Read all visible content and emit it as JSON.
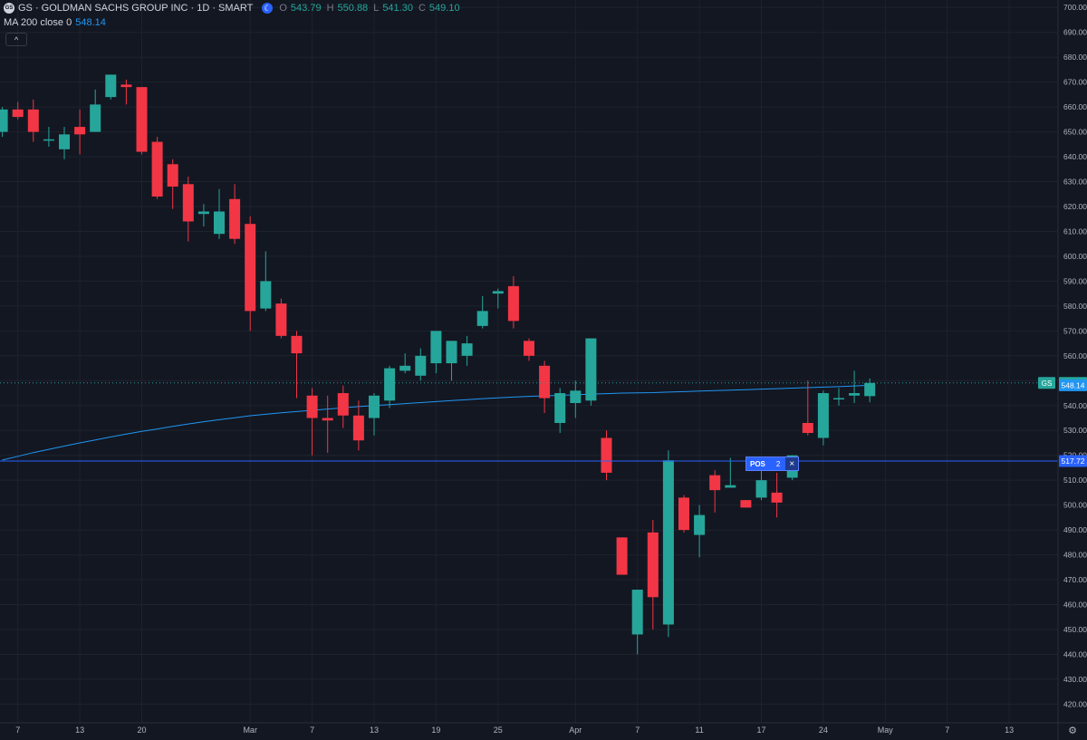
{
  "header": {
    "logo_text": "GS",
    "symbol_title": "GS · GOLDMAN SACHS GROUP INC · 1D · SMART",
    "ohlc": [
      {
        "label": "O",
        "value": "543.79"
      },
      {
        "label": "H",
        "value": "550.88"
      },
      {
        "label": "L",
        "value": "541.30"
      },
      {
        "label": "C",
        "value": "549.10"
      }
    ],
    "indicator_label": "MA 200 close 0",
    "indicator_value": "548.14",
    "collapse_glyph": "^"
  },
  "position_tag": {
    "label": "POS",
    "quantity": "2",
    "close_glyph": "×"
  },
  "colors": {
    "background": "#131722",
    "up": "#26a69a",
    "down": "#f23645",
    "ma_line": "#2196f3",
    "position_line": "#2962ff"
  },
  "chart_data": {
    "type": "candlestick",
    "title": "GS · GOLDMAN SACHS GROUP INC · 1D · SMART",
    "ylim": [
      412.5,
      703
    ],
    "y_ticks": [
      420,
      430,
      440,
      450,
      460,
      470,
      480,
      490,
      500,
      510,
      520,
      530,
      540,
      550,
      560,
      570,
      580,
      590,
      600,
      610,
      620,
      630,
      640,
      650,
      660,
      670,
      680,
      690,
      700
    ],
    "y_tick_labels": [
      "420.00",
      "430.00",
      "440.00",
      "450.00",
      "460.00",
      "470.00",
      "480.00",
      "490.00",
      "500.00",
      "510.00",
      "520.00",
      "530.00",
      "540.00",
      "550.00",
      "560.00",
      "570.00",
      "580.00",
      "590.00",
      "600.00",
      "610.00",
      "620.00",
      "630.00",
      "640.00",
      "650.00",
      "660.00",
      "670.00",
      "680.00",
      "690.00",
      "700.00"
    ],
    "x_tick_labels": [
      {
        "i": 1,
        "label": "7"
      },
      {
        "i": 5,
        "label": "13"
      },
      {
        "i": 9,
        "label": "20"
      },
      {
        "i": 16,
        "label": "Mar"
      },
      {
        "i": 20,
        "label": "7"
      },
      {
        "i": 24,
        "label": "13"
      },
      {
        "i": 28,
        "label": "19"
      },
      {
        "i": 32,
        "label": "25"
      },
      {
        "i": 37,
        "label": "Apr"
      },
      {
        "i": 41,
        "label": "7"
      },
      {
        "i": 45,
        "label": "11"
      },
      {
        "i": 49,
        "label": "17"
      },
      {
        "i": 53,
        "label": "24"
      },
      {
        "i": 57,
        "label": "May"
      },
      {
        "i": 61,
        "label": "7"
      },
      {
        "i": 65,
        "label": "13"
      }
    ],
    "grid": true,
    "series": [
      {
        "name": "GS",
        "candles": [
          {
            "o": 650,
            "h": 660,
            "l": 648,
            "c": 659
          },
          {
            "o": 659,
            "h": 662,
            "l": 655,
            "c": 656
          },
          {
            "o": 659,
            "h": 663,
            "l": 646,
            "c": 650
          },
          {
            "o": 647,
            "h": 652,
            "l": 644,
            "c": 647
          },
          {
            "o": 643,
            "h": 652,
            "l": 639,
            "c": 649
          },
          {
            "o": 652,
            "h": 659,
            "l": 641,
            "c": 649
          },
          {
            "o": 650,
            "h": 667,
            "l": 650,
            "c": 661
          },
          {
            "o": 664,
            "h": 673,
            "l": 663,
            "c": 673
          },
          {
            "o": 669,
            "h": 671,
            "l": 661,
            "c": 668
          },
          {
            "o": 668,
            "h": 668,
            "l": 641,
            "c": 642
          },
          {
            "o": 646,
            "h": 648,
            "l": 623,
            "c": 624
          },
          {
            "o": 637,
            "h": 639,
            "l": 619,
            "c": 628
          },
          {
            "o": 629,
            "h": 632,
            "l": 606,
            "c": 614
          },
          {
            "o": 617,
            "h": 621,
            "l": 612,
            "c": 618
          },
          {
            "o": 609,
            "h": 627,
            "l": 607,
            "c": 618
          },
          {
            "o": 623,
            "h": 629,
            "l": 605,
            "c": 607
          },
          {
            "o": 613,
            "h": 616,
            "l": 570,
            "c": 578
          },
          {
            "o": 579,
            "h": 602,
            "l": 578,
            "c": 590
          },
          {
            "o": 581,
            "h": 583,
            "l": 567,
            "c": 568
          },
          {
            "o": 568,
            "h": 570,
            "l": 543,
            "c": 561
          },
          {
            "o": 544,
            "h": 547,
            "l": 520,
            "c": 535
          },
          {
            "o": 535,
            "h": 544,
            "l": 521,
            "c": 534
          },
          {
            "o": 545,
            "h": 548,
            "l": 531,
            "c": 536
          },
          {
            "o": 536,
            "h": 542,
            "l": 522,
            "c": 526
          },
          {
            "o": 535,
            "h": 545,
            "l": 528,
            "c": 544
          },
          {
            "o": 542,
            "h": 556,
            "l": 539,
            "c": 555
          },
          {
            "o": 554,
            "h": 561,
            "l": 553,
            "c": 556
          },
          {
            "o": 552,
            "h": 563,
            "l": 550,
            "c": 560
          },
          {
            "o": 557,
            "h": 569,
            "l": 553,
            "c": 570
          },
          {
            "o": 557,
            "h": 566,
            "l": 550,
            "c": 566
          },
          {
            "o": 560,
            "h": 568,
            "l": 556,
            "c": 565
          },
          {
            "o": 572,
            "h": 584,
            "l": 571,
            "c": 578
          },
          {
            "o": 585,
            "h": 587,
            "l": 579,
            "c": 586
          },
          {
            "o": 588,
            "h": 592,
            "l": 571,
            "c": 574
          },
          {
            "o": 566,
            "h": 567,
            "l": 558,
            "c": 560
          },
          {
            "o": 556,
            "h": 558,
            "l": 537,
            "c": 543
          },
          {
            "o": 533,
            "h": 547,
            "l": 529,
            "c": 545
          },
          {
            "o": 541,
            "h": 550,
            "l": 535,
            "c": 546
          },
          {
            "o": 542,
            "h": 567,
            "l": 540,
            "c": 567
          },
          {
            "o": 527,
            "h": 530,
            "l": 510,
            "c": 513
          },
          {
            "o": 487,
            "h": 487,
            "l": 472,
            "c": 472
          },
          {
            "o": 448,
            "h": 466,
            "l": 440,
            "c": 466
          },
          {
            "o": 489,
            "h": 494,
            "l": 450,
            "c": 463
          },
          {
            "o": 452,
            "h": 522,
            "l": 447,
            "c": 518
          },
          {
            "o": 503,
            "h": 504,
            "l": 489,
            "c": 490
          },
          {
            "o": 488,
            "h": 500,
            "l": 479,
            "c": 496
          },
          {
            "o": 512,
            "h": 514,
            "l": 497,
            "c": 506
          },
          {
            "o": 507,
            "h": 519,
            "l": 507,
            "c": 508
          },
          {
            "o": 502,
            "h": 502,
            "l": 499,
            "c": 499
          },
          {
            "o": 503,
            "h": 516,
            "l": 502,
            "c": 510
          },
          {
            "o": 505,
            "h": 513,
            "l": 495,
            "c": 501
          },
          {
            "o": 511,
            "h": 520,
            "l": 510,
            "c": 520
          },
          {
            "o": 533,
            "h": 550,
            "l": 528,
            "c": 529
          },
          {
            "o": 527,
            "h": 546,
            "l": 524,
            "c": 545
          },
          {
            "o": 543,
            "h": 547,
            "l": 540,
            "c": 543
          },
          {
            "o": 544,
            "h": 554,
            "l": 541,
            "c": 545
          },
          {
            "o": 543.79,
            "h": 550.88,
            "l": 541.3,
            "c": 549.1
          }
        ]
      },
      {
        "name": "MA 200 close 0",
        "values": [
          518.1,
          519.6,
          521.1,
          522.4,
          523.7,
          525.0,
          526.2,
          527.4,
          528.5,
          529.6,
          530.6,
          531.6,
          532.6,
          533.5,
          534.3,
          535.1,
          535.9,
          536.5,
          537.1,
          537.6,
          538.1,
          538.6,
          539.1,
          539.6,
          540.0,
          540.4,
          540.8,
          541.2,
          541.6,
          542.0,
          542.4,
          542.8,
          543.1,
          543.4,
          543.7,
          543.9,
          544.1,
          544.3,
          544.6,
          544.8,
          545.0,
          545.1,
          545.2,
          545.4,
          545.6,
          545.8,
          546.0,
          546.2,
          546.4,
          546.6,
          546.8,
          547.0,
          547.2,
          547.4,
          547.6,
          547.9,
          548.14
        ]
      }
    ],
    "price_labels": [
      {
        "value": 549.1,
        "symbol": "GS",
        "text": "549.10",
        "color": "#26a69a"
      },
      {
        "value": 548.14,
        "text": "548.14",
        "color": "#2196f3"
      },
      {
        "value": 517.72,
        "text": "517.72",
        "color": "#2962ff"
      }
    ],
    "position_line": 517.72
  }
}
